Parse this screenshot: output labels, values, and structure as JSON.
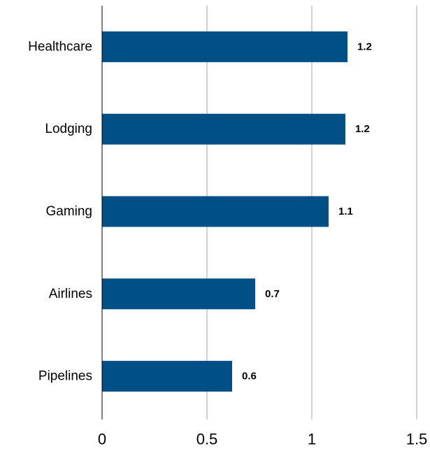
{
  "chart_data": {
    "type": "bar",
    "orientation": "horizontal",
    "categories": [
      "Healthcare",
      "Lodging",
      "Gaming",
      "Airlines",
      "Pipelines"
    ],
    "values": [
      1.17,
      1.16,
      1.08,
      0.73,
      0.62
    ],
    "data_labels": [
      "1.2",
      "1.2",
      "1.1",
      "0.7",
      "0.6"
    ],
    "xlim": [
      0,
      1.5
    ],
    "x_ticks": [
      0,
      0.5,
      1,
      1.5
    ],
    "x_tick_labels": [
      "0",
      "0.5",
      "1",
      "1.5"
    ],
    "title": "",
    "xlabel": "",
    "ylabel": "",
    "grid": "vertical",
    "bar_color": "#005087",
    "grid_color": "#a6a6a6"
  }
}
